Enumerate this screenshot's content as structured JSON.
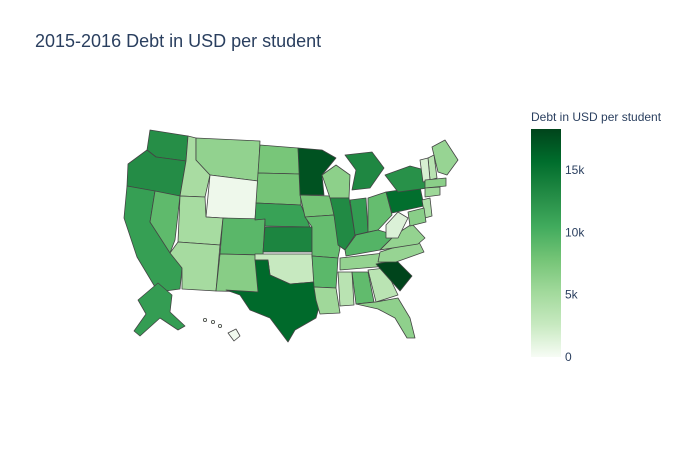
{
  "title": "2015-2016 Debt in USD per student",
  "colorbar": {
    "title": "Debt in USD per student",
    "min": 0,
    "max": 18300,
    "ticks": [
      {
        "value": 0,
        "label": "0"
      },
      {
        "value": 5000,
        "label": "5k"
      },
      {
        "value": 10000,
        "label": "10k"
      },
      {
        "value": 15000,
        "label": "15k"
      }
    ],
    "colorscale": [
      "#f7fcf5",
      "#c7e9c0",
      "#a1d99b",
      "#74c476",
      "#41ab5d",
      "#238b45",
      "#006d2c",
      "#00441b"
    ]
  },
  "chart_data": {
    "type": "choropleth",
    "scope": "usa",
    "metric": "Debt in USD per student",
    "states": [
      {
        "code": "WA",
        "value": 12800
      },
      {
        "code": "OR",
        "value": 13000
      },
      {
        "code": "CA",
        "value": 11400
      },
      {
        "code": "NV",
        "value": 8900
      },
      {
        "code": "ID",
        "value": 4700
      },
      {
        "code": "MT",
        "value": 6100
      },
      {
        "code": "WY",
        "value": 500
      },
      {
        "code": "UT",
        "value": 4800
      },
      {
        "code": "AZ",
        "value": 4900
      },
      {
        "code": "CO",
        "value": 9200
      },
      {
        "code": "NM",
        "value": 6700
      },
      {
        "code": "ND",
        "value": 7600
      },
      {
        "code": "SD",
        "value": 7800
      },
      {
        "code": "NE",
        "value": 11200
      },
      {
        "code": "KS",
        "value": 13600
      },
      {
        "code": "OK",
        "value": 2600
      },
      {
        "code": "TX",
        "value": 15900
      },
      {
        "code": "MN",
        "value": 17400
      },
      {
        "code": "IA",
        "value": 7900
      },
      {
        "code": "MO",
        "value": 8600
      },
      {
        "code": "AR",
        "value": 9100
      },
      {
        "code": "LA",
        "value": 5300
      },
      {
        "code": "WI",
        "value": 6400
      },
      {
        "code": "IL",
        "value": 13200
      },
      {
        "code": "MI",
        "value": 13400
      },
      {
        "code": "IN",
        "value": 11800
      },
      {
        "code": "OH",
        "value": 8600
      },
      {
        "code": "KY",
        "value": 9500
      },
      {
        "code": "TN",
        "value": 6000
      },
      {
        "code": "MS",
        "value": 3600
      },
      {
        "code": "AL",
        "value": 8800
      },
      {
        "code": "GA",
        "value": 3500
      },
      {
        "code": "FL",
        "value": 6300
      },
      {
        "code": "SC",
        "value": 18300
      },
      {
        "code": "NC",
        "value": 5800
      },
      {
        "code": "VA",
        "value": 6000
      },
      {
        "code": "WV",
        "value": 1500
      },
      {
        "code": "PA",
        "value": 15500
      },
      {
        "code": "NY",
        "value": 12600
      },
      {
        "code": "ME",
        "value": 5800
      },
      {
        "code": "NH",
        "value": 3600
      },
      {
        "code": "VT",
        "value": 1800
      },
      {
        "code": "MA",
        "value": 6500
      },
      {
        "code": "CT",
        "value": 5400
      },
      {
        "code": "NJ",
        "value": 4300
      },
      {
        "code": "MD",
        "value": 6600
      },
      {
        "code": "AK",
        "value": 11600
      },
      {
        "code": "HI",
        "value": 300
      }
    ]
  }
}
